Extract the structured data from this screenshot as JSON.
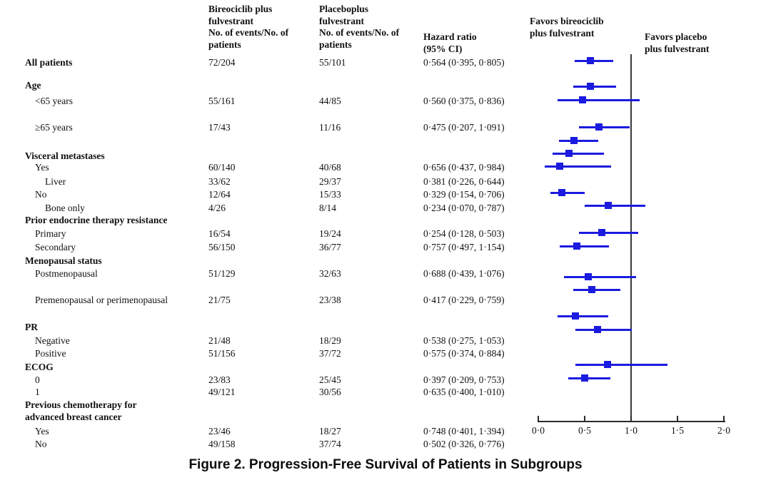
{
  "figure": {
    "caption": "Figure 2. Progression-Free Survival of Patients in Subgroups"
  },
  "table": {
    "columns": {
      "arm1_name": "Bireociclib plus fulvestrant",
      "arm1_measure": "No. of events/No. of patients",
      "arm2_name": "Placeboplus fulvestrant",
      "arm2_measure": "No. of events/No. of patients",
      "hazard_header": "Hazard ratio (95% CI)"
    },
    "rows": [
      {
        "label": "All patients",
        "indent": 0,
        "bold": true,
        "events_bireociclib": "72/204",
        "events_placebo": "55/101",
        "hazard_ratio_text": "0·564 (0·395, 0·805)"
      },
      {
        "label": "Age",
        "indent": 0,
        "bold": true
      },
      {
        "label": "<65 years",
        "indent": 1,
        "events_bireociclib": "55/161",
        "events_placebo": "44/85",
        "hazard_ratio_text": "0·560 (0·375, 0·836)"
      },
      {
        "label": "≥65 years",
        "indent": 1,
        "events_bireociclib": "17/43",
        "events_placebo": "11/16",
        "hazard_ratio_text": "0·475 (0·207, 1·091)"
      },
      {
        "label": "Visceral metastases",
        "indent": 0,
        "bold": true
      },
      {
        "label": "Yes",
        "indent": 1,
        "events_bireociclib": "60/140",
        "events_placebo": "40/68",
        "hazard_ratio_text": "0·656 (0·437, 0·984)"
      },
      {
        "label": "Liver",
        "indent": 2,
        "events_bireociclib": "33/62",
        "events_placebo": "29/37",
        "hazard_ratio_text": "0·381 (0·226, 0·644)"
      },
      {
        "label": "No",
        "indent": 1,
        "events_bireociclib": "12/64",
        "events_placebo": "15/33",
        "hazard_ratio_text": "0·329 (0·154, 0·706)"
      },
      {
        "label": "Bone only",
        "indent": 2,
        "events_bireociclib": "4/26",
        "events_placebo": "8/14",
        "hazard_ratio_text": "0·234 (0·070, 0·787)"
      },
      {
        "label": "Prior endocrine therapy resistance",
        "indent": 0,
        "bold": true
      },
      {
        "label": "Primary",
        "indent": 1,
        "events_bireociclib": "16/54",
        "events_placebo": "19/24",
        "hazard_ratio_text": "0·254 (0·128, 0·503)"
      },
      {
        "label": "Secondary",
        "indent": 1,
        "events_bireociclib": "56/150",
        "events_placebo": "36/77",
        "hazard_ratio_text": "0·757 (0·497, 1·154)"
      },
      {
        "label": "Menopausal status",
        "indent": 0,
        "bold": true
      },
      {
        "label": "Postmenopausal",
        "indent": 1,
        "events_bireociclib": "51/129",
        "events_placebo": "32/63",
        "hazard_ratio_text": "0·688 (0·439, 1·076)"
      },
      {
        "label": "Premenopausal or perimenopausal",
        "indent": 1,
        "events_bireociclib": "21/75",
        "events_placebo": "23/38",
        "hazard_ratio_text": "0·417 (0·229, 0·759)"
      },
      {
        "label": "PR",
        "indent": 0,
        "bold": true
      },
      {
        "label": "Negative",
        "indent": 1,
        "events_bireociclib": "21/48",
        "events_placebo": "18/29",
        "hazard_ratio_text": "0·538 (0·275, 1·053)"
      },
      {
        "label": "Positive",
        "indent": 1,
        "events_bireociclib": "51/156",
        "events_placebo": "37/72",
        "hazard_ratio_text": "0·575 (0·374, 0·884)"
      },
      {
        "label": "ECOG",
        "indent": 0,
        "bold": true
      },
      {
        "label": "0",
        "indent": 1,
        "events_bireociclib": "23/83",
        "events_placebo": "25/45",
        "hazard_ratio_text": "0·397 (0·209, 0·753)"
      },
      {
        "label": "1",
        "indent": 1,
        "events_bireociclib": "49/121",
        "events_placebo": "30/56",
        "hazard_ratio_text": "0·635 (0·400, 1·010)"
      },
      {
        "label": "Previous chemotherapy for advanced breast cancer",
        "indent": 0,
        "bold": true
      },
      {
        "label": "Yes",
        "indent": 1,
        "events_bireociclib": "23/46",
        "events_placebo": "18/27",
        "hazard_ratio_text": "0·748 (0·401, 1·394)"
      },
      {
        "label": "No",
        "indent": 1,
        "events_bireociclib": "49/158",
        "events_placebo": "37/74",
        "hazard_ratio_text": "0·502 (0·326, 0·776)"
      }
    ]
  },
  "chart_data": {
    "type": "scatter",
    "subtype": "forest-plot",
    "title": "Figure 2. Progression-Free Survival of Patients in Subgroups",
    "xlabel": "Hazard ratio",
    "xlim": [
      0,
      2
    ],
    "x_tick_labels": [
      "0·0",
      "0·5",
      "1·0",
      "1·5",
      "2·0"
    ],
    "x_tick_values": [
      0,
      0.5,
      1,
      1.5,
      2
    ],
    "reference_line_x": 1.0,
    "favors_left": "Favors bireociclib  plus fulvestrant",
    "favors_right": "Favors placebo plus fulvestrant",
    "legend_position": "none",
    "grid": false,
    "series": [
      {
        "subgroup": "All patients",
        "hr": 0.564,
        "ci_low": 0.395,
        "ci_high": 0.805
      },
      {
        "subgroup": "<65 years",
        "hr": 0.56,
        "ci_low": 0.375,
        "ci_high": 0.836
      },
      {
        "subgroup": "≥65 years",
        "hr": 0.475,
        "ci_low": 0.207,
        "ci_high": 1.091
      },
      {
        "subgroup": "Visceral metastases: Yes",
        "hr": 0.656,
        "ci_low": 0.437,
        "ci_high": 0.984
      },
      {
        "subgroup": "Visceral metastases: Liver",
        "hr": 0.381,
        "ci_low": 0.226,
        "ci_high": 0.644
      },
      {
        "subgroup": "Visceral metastases: No",
        "hr": 0.329,
        "ci_low": 0.154,
        "ci_high": 0.706
      },
      {
        "subgroup": "Visceral metastases: Bone only",
        "hr": 0.234,
        "ci_low": 0.07,
        "ci_high": 0.787
      },
      {
        "subgroup": "Prior endocrine therapy resistance: Primary",
        "hr": 0.254,
        "ci_low": 0.128,
        "ci_high": 0.503
      },
      {
        "subgroup": "Prior endocrine therapy resistance: Secondary",
        "hr": 0.757,
        "ci_low": 0.497,
        "ci_high": 1.154
      },
      {
        "subgroup": "Postmenopausal",
        "hr": 0.688,
        "ci_low": 0.439,
        "ci_high": 1.076
      },
      {
        "subgroup": "Premenopausal or perimenopausal",
        "hr": 0.417,
        "ci_low": 0.229,
        "ci_high": 0.759
      },
      {
        "subgroup": "PR Negative",
        "hr": 0.538,
        "ci_low": 0.275,
        "ci_high": 1.053
      },
      {
        "subgroup": "PR Positive",
        "hr": 0.575,
        "ci_low": 0.374,
        "ci_high": 0.884
      },
      {
        "subgroup": "ECOG 0",
        "hr": 0.397,
        "ci_low": 0.209,
        "ci_high": 0.753
      },
      {
        "subgroup": "ECOG 1",
        "hr": 0.635,
        "ci_low": 0.4,
        "ci_high": 1.01
      },
      {
        "subgroup": "Previous chemotherapy: Yes",
        "hr": 0.748,
        "ci_low": 0.401,
        "ci_high": 1.394
      },
      {
        "subgroup": "Previous chemotherapy: No",
        "hr": 0.502,
        "ci_low": 0.326,
        "ci_high": 0.776
      }
    ]
  },
  "colors": {
    "marker": "#1b1bdf",
    "axis": "#2b2b2b",
    "reference_line": "#3b3b3b",
    "text": "#111111"
  }
}
